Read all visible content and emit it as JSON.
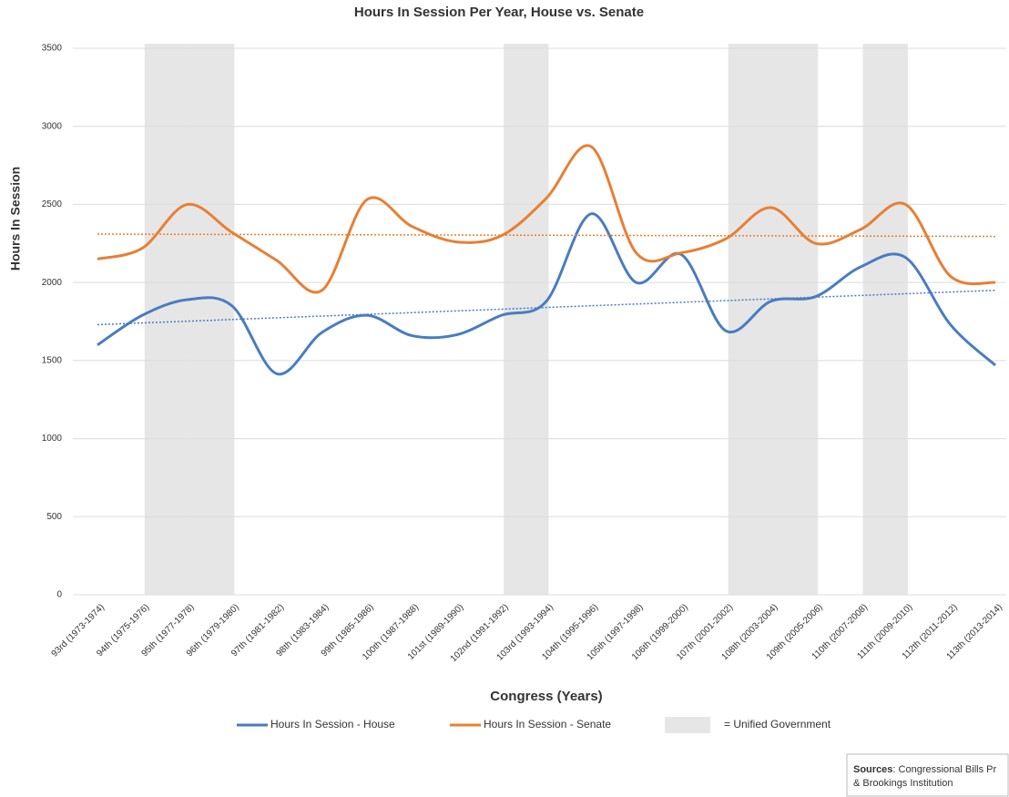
{
  "chart_data": {
    "type": "line",
    "title": "Hours In Session Per Year, House vs. Senate",
    "x_label": "Congress (Years)",
    "y_label": "Hours In Session",
    "categories": [
      "93rd (1973-1974)",
      "94th (1975-1976)",
      "95th (1977-1978)",
      "96th (1979-1980)",
      "97th (1981-1982)",
      "98th (1983-1984)",
      "99th (1985-1986)",
      "100th (1987-1988)",
      "101st (1989-1990)",
      "102nd (1991-1992)",
      "103rd (1993-1994)",
      "104th (1995-1996)",
      "105th (1997-1998)",
      "106th (1999-2000)",
      "107th (2001-2002)",
      "108th (2003-2004)",
      "109th (2005-2006)",
      "110th (2007-2008)",
      "111th (2009-2010)",
      "112th (2011-2012)",
      "113th (2013-2014)"
    ],
    "series": [
      {
        "name": "Hours In Session - House",
        "color": "#4a7cc2",
        "values": [
          1600,
          1790,
          1890,
          1850,
          1415,
          1680,
          1790,
          1660,
          1665,
          1790,
          1880,
          2440,
          2000,
          2180,
          1690,
          1880,
          1910,
          2100,
          2160,
          1730,
          1470
        ],
        "trend": {
          "start": 1730,
          "end": 1950
        }
      },
      {
        "name": "Hours In Session - Senate",
        "color": "#e87f33",
        "values": [
          2150,
          2220,
          2500,
          2320,
          2140,
          1950,
          2530,
          2360,
          2260,
          2300,
          2540,
          2870,
          2190,
          2190,
          2280,
          2480,
          2250,
          2340,
          2500,
          2040,
          2000
        ],
        "trend": {
          "start": 2310,
          "end": 2295
        }
      }
    ],
    "shaded": {
      "name": "= Unified Government",
      "color": "#e6e6e6",
      "categories": [
        2,
        3,
        10,
        15,
        16,
        18
      ]
    },
    "ylim": [
      0,
      3500
    ],
    "yticks": [
      0,
      500,
      1000,
      1500,
      2000,
      2500,
      3000,
      3500
    ],
    "grid": true
  },
  "source": {
    "label": "Sources",
    "line1": ": Congressional Bills Pr",
    "line2": "& Brookings Institution"
  }
}
